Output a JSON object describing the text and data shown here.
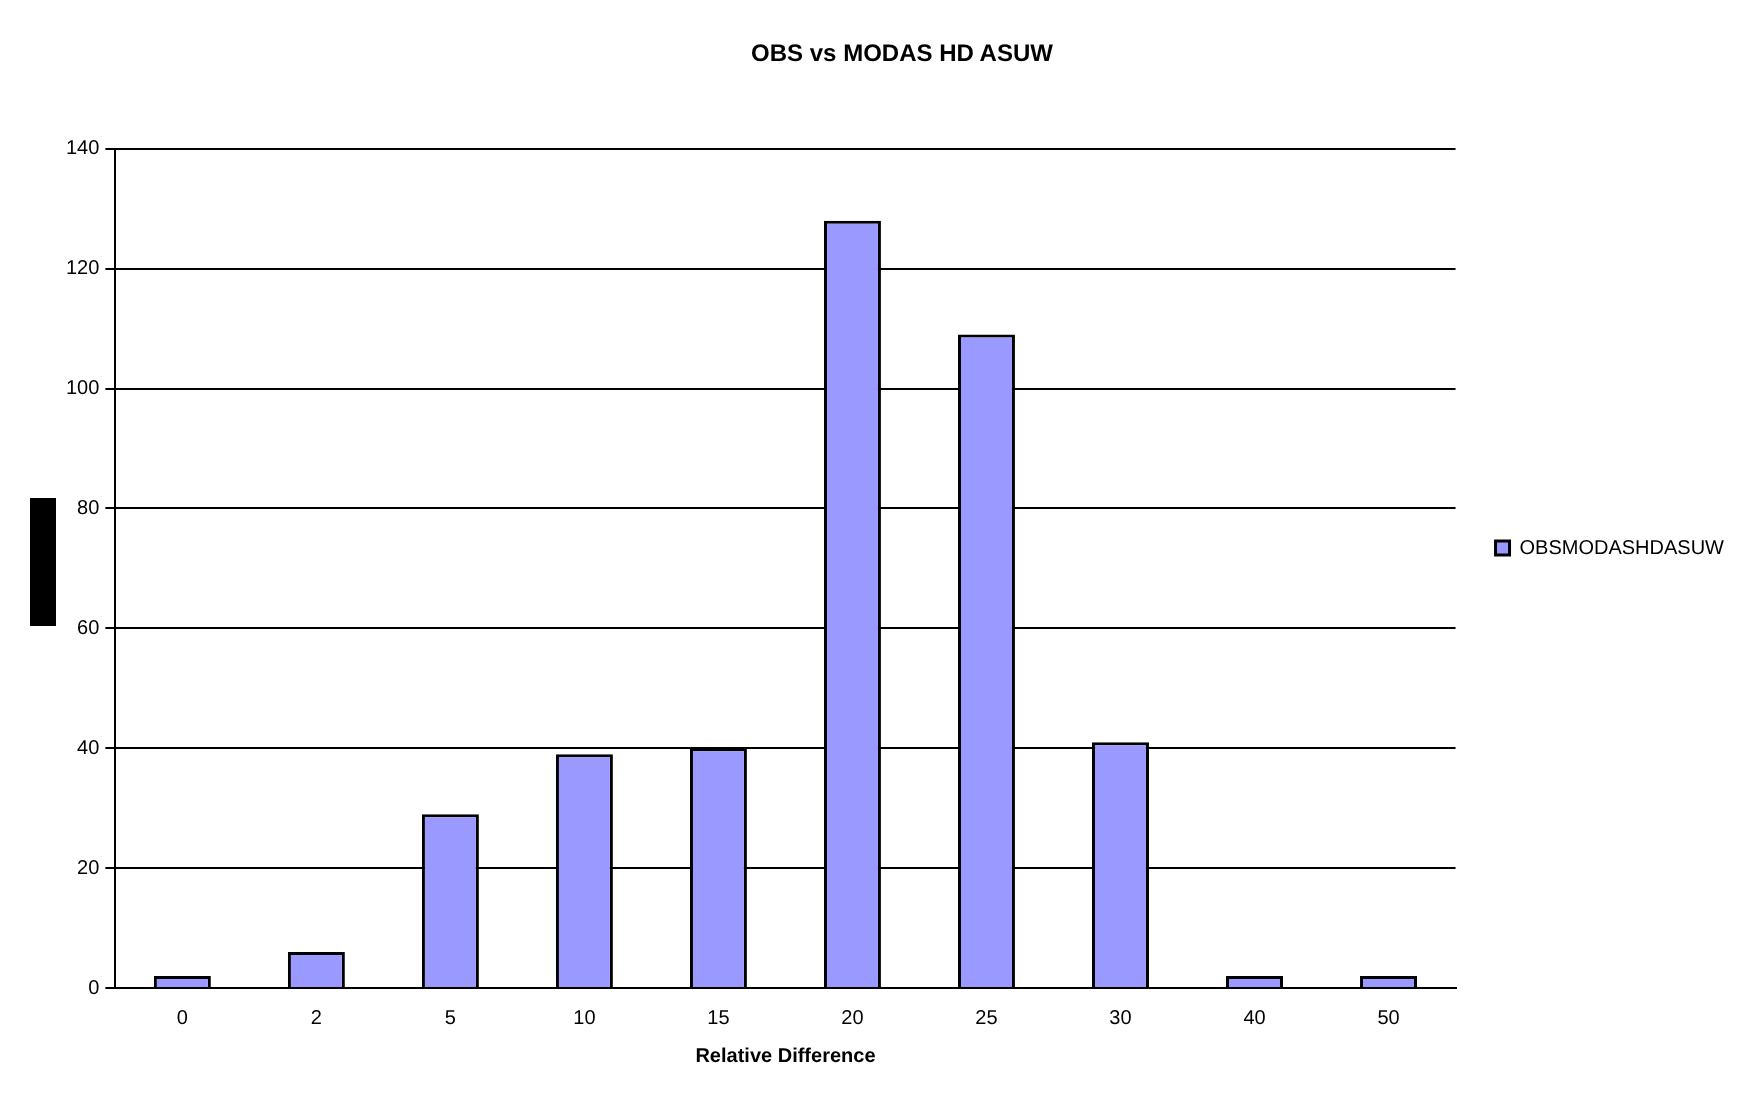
{
  "chart_data": {
    "type": "bar",
    "title": "OBS vs MODAS HD ASUW",
    "xlabel": "Relative Difference",
    "categories": [
      "0",
      "2",
      "5",
      "10",
      "15",
      "20",
      "25",
      "30",
      "40",
      "50"
    ],
    "series": [
      {
        "name": "OBSMODASHDASUW",
        "color": "#9999ff",
        "values": [
          2,
          6,
          29,
          39,
          40,
          128,
          109,
          41,
          2,
          2
        ]
      }
    ],
    "ylim": [
      0,
      140
    ],
    "yticks": [
      0,
      20,
      40,
      60,
      80,
      100,
      120,
      140
    ],
    "grid": "y",
    "legend": "right"
  }
}
